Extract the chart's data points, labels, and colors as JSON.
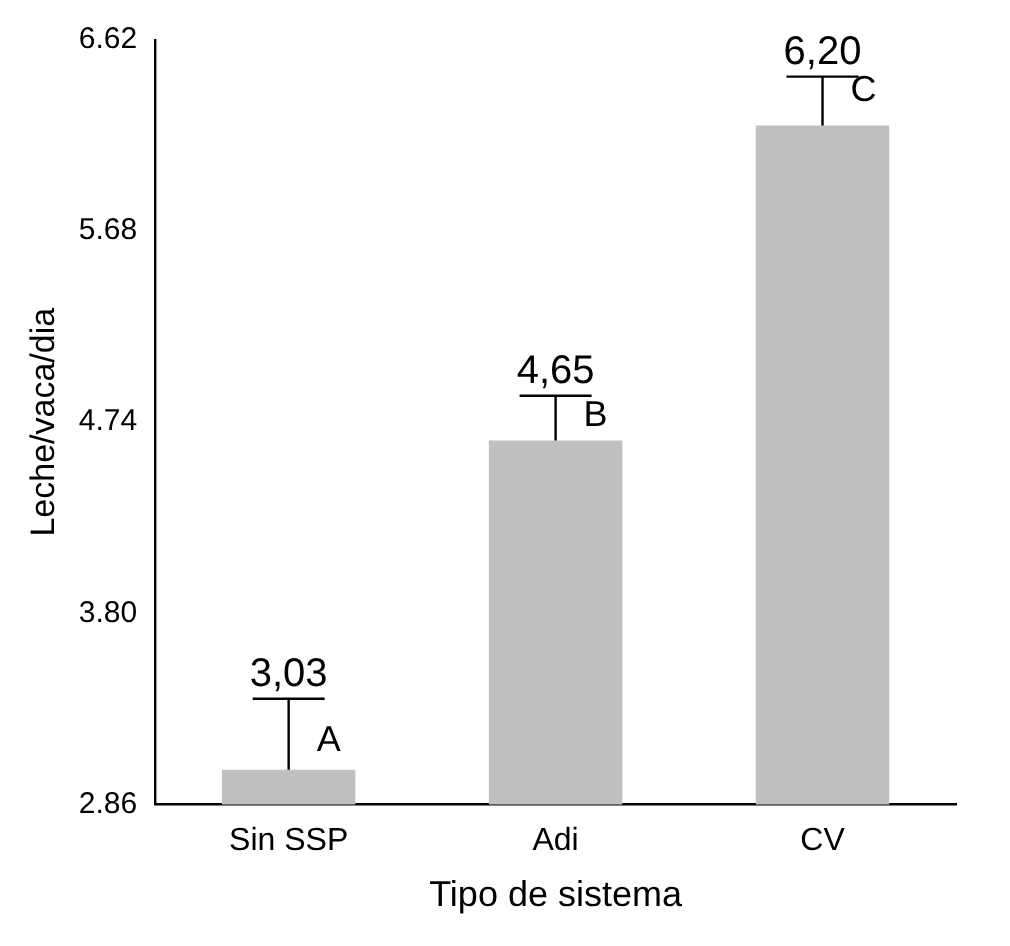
{
  "chart_data": {
    "type": "bar",
    "xlabel": "Tipo de sistema",
    "ylabel": "Leche/vaca/dia",
    "categories": [
      "Sin SSP",
      "Adi",
      "CV"
    ],
    "values": [
      3.03,
      4.65,
      6.2
    ],
    "color": "#c0c0c0",
    "errors": [
      [
        3.03,
        3.38
      ],
      [
        4.65,
        4.87
      ],
      [
        6.2,
        6.44
      ]
    ],
    "value_labels": [
      "3,03",
      "4,65",
      "6,20"
    ],
    "annotations": [
      {
        "text": "A",
        "x": "Sin SSP",
        "y": 3.17
      },
      {
        "text": "B",
        "x": "Adi",
        "y": 4.77
      },
      {
        "text": "C",
        "x": "CV",
        "y": 6.37
      }
    ],
    "ylim": [
      2.86,
      6.62
    ],
    "yticks": [
      2.86,
      {
        "value": 3.8,
        "label": "3.80"
      },
      4.74,
      5.68,
      6.62
    ],
    "grid": false,
    "legend": false
  }
}
